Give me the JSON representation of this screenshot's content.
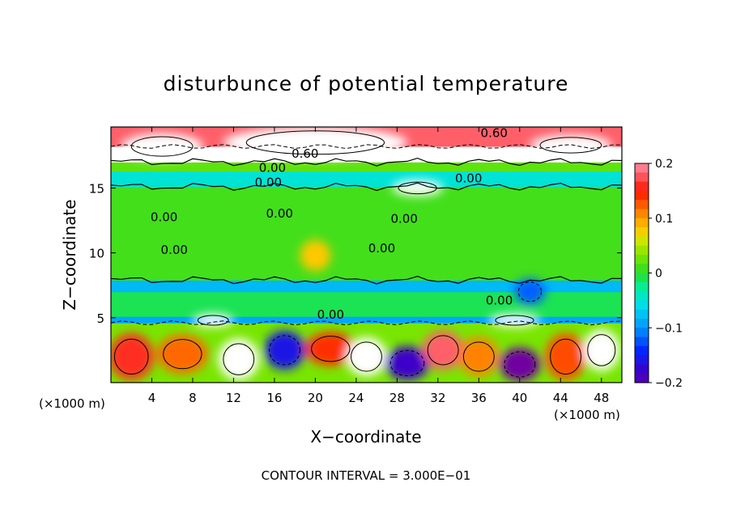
{
  "chart_data": {
    "type": "heatmap",
    "title": "disturbunce of potential temperature",
    "xlabel": "X−coordinate",
    "ylabel": "Z−coordinate",
    "x_unit_left": "(×1000 m)",
    "x_unit_right": "(×1000 m)",
    "xlim": [
      0,
      50
    ],
    "ylim": [
      0,
      19.7
    ],
    "x_ticks": [
      4,
      8,
      12,
      16,
      20,
      24,
      28,
      32,
      36,
      40,
      44,
      48
    ],
    "y_ticks": [
      5,
      10,
      15
    ],
    "colorbar": {
      "min": -0.2,
      "max": 0.2,
      "ticks": [
        0.2,
        0.1,
        0,
        -0.1,
        -0.2
      ],
      "tick_labels": [
        "0.2",
        "0.1",
        "0",
        "−0.1",
        "−0.2"
      ]
    },
    "bands": [
      {
        "z0": 0,
        "z1": 4.6,
        "value": 0.03
      },
      {
        "z0": 4.6,
        "z1": 5.1,
        "value": -0.09
      },
      {
        "z0": 5.1,
        "z1": 7.0,
        "value": -0.01
      },
      {
        "z0": 7.0,
        "z1": 7.9,
        "value": -0.08
      },
      {
        "z0": 7.9,
        "z1": 15.1,
        "value": 0.01
      },
      {
        "z0": 15.1,
        "z1": 16.3,
        "value": -0.05
      },
      {
        "z0": 16.3,
        "z1": 17.0,
        "value": 0.02
      },
      {
        "z0": 17.0,
        "z1": 18.2,
        "value": 0.25
      },
      {
        "z0": 18.2,
        "z1": 19.7,
        "value": 0.18
      }
    ],
    "blobs": [
      {
        "x": 2,
        "z": 2.0,
        "rx": 2.2,
        "rz": 1.8,
        "value": 0.16
      },
      {
        "x": 7,
        "z": 2.2,
        "rx": 2.5,
        "rz": 1.5,
        "value": 0.12
      },
      {
        "x": 12.5,
        "z": 1.8,
        "rx": 2.0,
        "rz": 1.6,
        "value": 0.25
      },
      {
        "x": 17,
        "z": 2.5,
        "rx": 2.0,
        "rz": 1.5,
        "value": -0.16
      },
      {
        "x": 21.5,
        "z": 2.6,
        "rx": 2.5,
        "rz": 1.3,
        "value": 0.14
      },
      {
        "x": 25,
        "z": 2.0,
        "rx": 2.0,
        "rz": 1.5,
        "value": 0.25
      },
      {
        "x": 29,
        "z": 1.5,
        "rx": 2.2,
        "rz": 1.3,
        "value": -0.18
      },
      {
        "x": 32.5,
        "z": 2.5,
        "rx": 2.0,
        "rz": 1.5,
        "value": 0.18
      },
      {
        "x": 36,
        "z": 2.0,
        "rx": 2.0,
        "rz": 1.5,
        "value": 0.11
      },
      {
        "x": 40,
        "z": 1.4,
        "rx": 2.0,
        "rz": 1.3,
        "value": -0.22
      },
      {
        "x": 44.5,
        "z": 2.0,
        "rx": 2.0,
        "rz": 1.8,
        "value": 0.13
      },
      {
        "x": 48,
        "z": 2.5,
        "rx": 1.8,
        "rz": 1.6,
        "value": 0.25
      },
      {
        "x": 20,
        "z": 9.8,
        "rx": 1.5,
        "rz": 1.2,
        "value": 0.08
      },
      {
        "x": 10,
        "z": 4.8,
        "rx": 2.0,
        "rz": 0.5,
        "value": 0.25
      },
      {
        "x": 39.5,
        "z": 4.8,
        "rx": 2.5,
        "rz": 0.5,
        "value": 0.25
      },
      {
        "x": 41,
        "z": 7.0,
        "rx": 1.5,
        "rz": 1.0,
        "value": -0.12
      },
      {
        "x": 30,
        "z": 15.0,
        "rx": 2.5,
        "rz": 0.6,
        "value": 0.25
      },
      {
        "x": 5,
        "z": 18.2,
        "rx": 4.0,
        "rz": 1.0,
        "value": 0.25
      },
      {
        "x": 20,
        "z": 18.5,
        "rx": 9.0,
        "rz": 1.2,
        "value": 0.25
      },
      {
        "x": 45,
        "z": 18.3,
        "rx": 4.0,
        "rz": 0.8,
        "value": 0.25
      }
    ],
    "contour_labels": [
      {
        "x": 19,
        "z": 17.7,
        "text": "0.60"
      },
      {
        "x": 37.5,
        "z": 19.3,
        "text": "0.60"
      },
      {
        "x": 15.8,
        "z": 16.6,
        "text": "0.00"
      },
      {
        "x": 15.4,
        "z": 15.5,
        "text": "0.00"
      },
      {
        "x": 35,
        "z": 15.8,
        "text": "0.00"
      },
      {
        "x": 16.5,
        "z": 13.1,
        "text": "0.00"
      },
      {
        "x": 28.7,
        "z": 12.7,
        "text": "0.00"
      },
      {
        "x": 5.2,
        "z": 12.8,
        "text": "0.00"
      },
      {
        "x": 6.2,
        "z": 10.3,
        "text": "0.00"
      },
      {
        "x": 26.5,
        "z": 10.4,
        "text": "0.00"
      },
      {
        "x": 21.5,
        "z": 5.3,
        "text": "0.00"
      },
      {
        "x": 38,
        "z": 6.4,
        "text": "0.00"
      }
    ],
    "contour_interval_text": "CONTOUR INTERVAL = 3.000E−01"
  }
}
